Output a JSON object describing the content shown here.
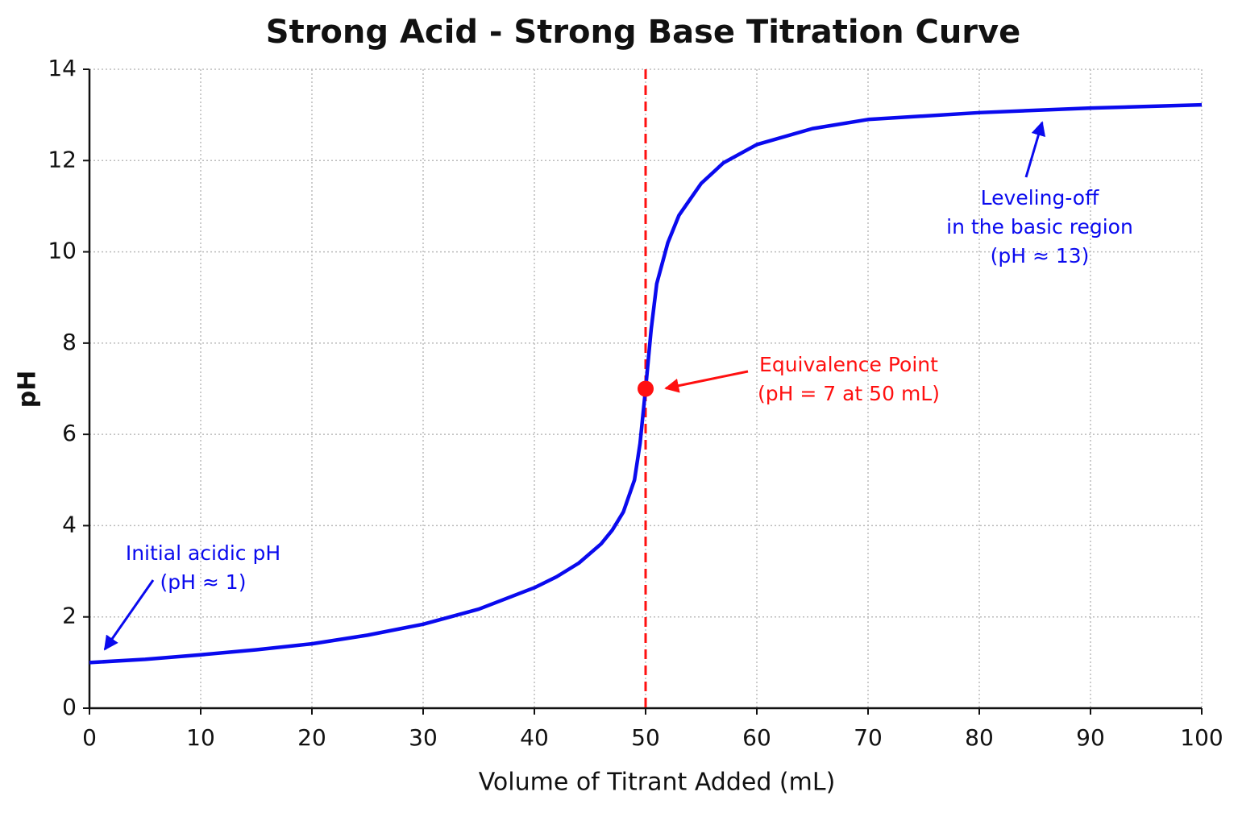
{
  "chart_data": {
    "type": "line",
    "title": "Strong Acid - Strong Base Titration Curve",
    "x_label": "Volume of Titrant Added (mL)",
    "y_label": "pH",
    "xlim": [
      0,
      100
    ],
    "ylim": [
      0,
      14
    ],
    "xticks": [
      0,
      10,
      20,
      30,
      40,
      50,
      60,
      70,
      80,
      90,
      100
    ],
    "yticks": [
      0,
      2,
      4,
      6,
      8,
      10,
      12,
      14
    ],
    "grid": true,
    "series": [
      {
        "color": "#0a0aee",
        "x": [
          0,
          5,
          10,
          15,
          20,
          25,
          30,
          35,
          40,
          42,
          44,
          46,
          47,
          48,
          49,
          49.5,
          50,
          50.5,
          51,
          52,
          53,
          55,
          57,
          60,
          65,
          70,
          80,
          90,
          100
        ],
        "values": [
          1.0,
          1.07,
          1.17,
          1.28,
          1.41,
          1.6,
          1.84,
          2.17,
          2.64,
          2.88,
          3.18,
          3.6,
          3.9,
          4.3,
          5.0,
          5.8,
          7.0,
          8.3,
          9.3,
          10.2,
          10.8,
          11.5,
          11.95,
          12.35,
          12.7,
          12.9,
          13.05,
          13.15,
          13.22
        ]
      }
    ],
    "equivalence_point": {
      "x": 50,
      "y": 7,
      "color": "#ff1010"
    },
    "annotations": [
      {
        "text": [
          "Initial acidic pH",
          "(pH ≈ 1)"
        ],
        "color": "#0a0aee"
      },
      {
        "text": [
          "Equivalence Point",
          "(pH = 7 at 50 mL)"
        ],
        "color": "#ff1010"
      },
      {
        "text": [
          "Leveling-off",
          "in the basic region",
          "(pH ≈ 13)"
        ],
        "color": "#0a0aee"
      }
    ]
  }
}
